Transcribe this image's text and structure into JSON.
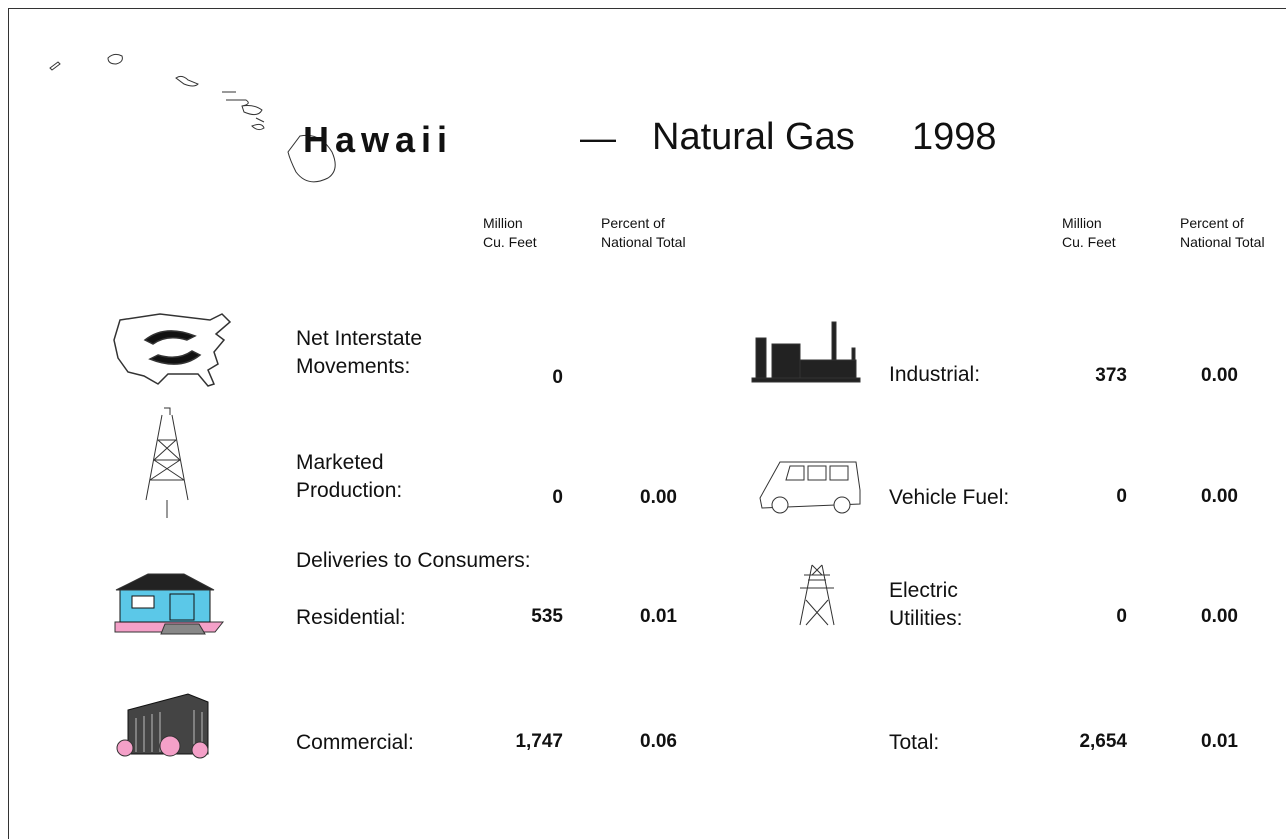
{
  "header": {
    "state": "Hawaii",
    "dash": "—",
    "title": "Natural Gas",
    "year": "1998"
  },
  "columns_left": [
    [
      "Million",
      "Cu. Feet"
    ],
    [
      "Percent of",
      "National Total"
    ]
  ],
  "columns_right": [
    [
      "Million",
      "Cu. Feet"
    ],
    [
      "Percent of",
      "National Total"
    ]
  ],
  "left": {
    "interstate": {
      "label": [
        "Net Interstate",
        "Movements:"
      ],
      "volume": "0"
    },
    "production": {
      "label": [
        "Marketed",
        "Production:"
      ],
      "volume": "0",
      "percent": "0.00"
    },
    "section": "Deliveries to Consumers:",
    "residential": {
      "label": [
        "Residential:"
      ],
      "volume": "535",
      "percent": "0.01"
    },
    "commercial": {
      "label": [
        "Commercial:"
      ],
      "volume": "1,747",
      "percent": "0.06"
    }
  },
  "right": {
    "industrial": {
      "label": [
        "Industrial:"
      ],
      "volume": "373",
      "percent": "0.00"
    },
    "vehicle": {
      "label": [
        "Vehicle Fuel:"
      ],
      "volume": "0",
      "percent": "0.00"
    },
    "electric": {
      "label": [
        "Electric",
        "Utilities:"
      ],
      "volume": "0",
      "percent": "0.00"
    },
    "total": {
      "label": [
        "Total:"
      ],
      "volume": "2,654",
      "percent": "0.01"
    }
  }
}
